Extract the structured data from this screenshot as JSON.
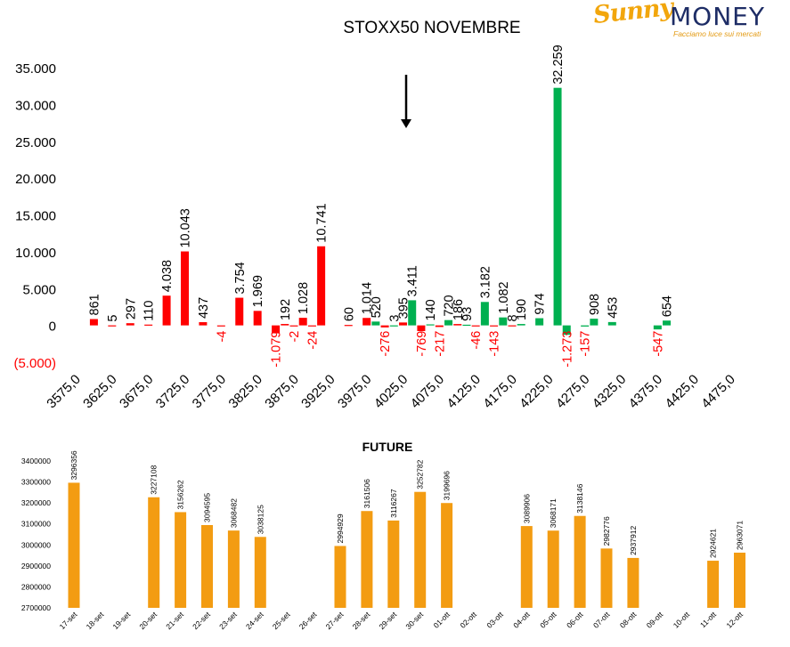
{
  "logo": {
    "brand_left": "Sunny",
    "brand_right": "MONEY",
    "tagline": "Facciamo luce sui mercati"
  },
  "colors": {
    "positive_bar": "#00b050",
    "negative_bar": "#ff0000",
    "negative_text": "#ff0000",
    "future_bar": "#f39c12"
  },
  "annotation_icon": "down-arrow-icon",
  "chart_data": [
    {
      "type": "bar",
      "title": "STOXX50 NOVEMBRE",
      "xlabel": "",
      "ylabel": "",
      "ylim": [
        -5000,
        35000
      ],
      "y_ticks": [
        "(5.000)",
        "0",
        "5.000",
        "10.000",
        "15.000",
        "20.000",
        "25.000",
        "30.000",
        "35.000"
      ],
      "x_tick_labels": [
        "3575,0",
        "3625,0",
        "3675,0",
        "3725,0",
        "3775,0",
        "3825,0",
        "3875,0",
        "3925,0",
        "3975,0",
        "4025,0",
        "4075,0",
        "4125,0",
        "4175,0",
        "4225,0",
        "4275,0",
        "4325,0",
        "4375,0",
        "4425,0",
        "4475,0"
      ],
      "grid": false,
      "points": [
        {
          "x": 3600,
          "value": 861,
          "label": "861",
          "color": "red"
        },
        {
          "x": 3625,
          "value": 5,
          "label": "5",
          "color": "red"
        },
        {
          "x": 3650,
          "value": 297,
          "label": "297",
          "color": "red"
        },
        {
          "x": 3675,
          "value": 110,
          "label": "110",
          "color": "red"
        },
        {
          "x": 3700,
          "value": 4038,
          "label": "4.038",
          "color": "red"
        },
        {
          "x": 3725,
          "value": 10043,
          "label": "10.043",
          "color": "red"
        },
        {
          "x": 3750,
          "value": 437,
          "label": "437",
          "color": "red"
        },
        {
          "x": 3775,
          "value": -4,
          "label": "-4",
          "color": "red"
        },
        {
          "x": 3800,
          "value": 3754,
          "label": "3.754",
          "color": "red"
        },
        {
          "x": 3825,
          "value": 1969,
          "label": "1.969",
          "color": "red"
        },
        {
          "x": 3850,
          "value": -1079,
          "label": "-1.079",
          "color": "red"
        },
        {
          "x": 3862.5,
          "value": 192,
          "label": "192",
          "color": "red"
        },
        {
          "x": 3875,
          "value": -2,
          "label": "-2",
          "color": "red"
        },
        {
          "x": 3887.5,
          "value": 1028,
          "label": "1.028",
          "color": "red"
        },
        {
          "x": 3900,
          "value": -24,
          "label": "-24",
          "color": "red"
        },
        {
          "x": 3912.5,
          "value": 10741,
          "label": "10.741",
          "color": "red"
        },
        {
          "x": 3950,
          "value": 60,
          "label": "60",
          "color": "red"
        },
        {
          "x": 3975,
          "value": 1014,
          "label": "1.014",
          "color": "red"
        },
        {
          "x": 3987.5,
          "value": 520,
          "label": "520",
          "color": "green"
        },
        {
          "x": 4000,
          "value": -276,
          "label": "-276",
          "color": "red"
        },
        {
          "x": 4012.5,
          "value": 3,
          "label": "3",
          "color": "green"
        },
        {
          "x": 4025,
          "value": 395,
          "label": "395",
          "color": "red"
        },
        {
          "x": 4037.5,
          "value": 3411,
          "label": "3.411",
          "color": "green"
        },
        {
          "x": 4050,
          "value": -769,
          "label": "-769",
          "color": "red"
        },
        {
          "x": 4062.5,
          "value": 140,
          "label": "140",
          "color": "green"
        },
        {
          "x": 4075,
          "value": -217,
          "label": "-217",
          "color": "red"
        },
        {
          "x": 4087.5,
          "value": 720,
          "label": "720",
          "color": "green"
        },
        {
          "x": 4100,
          "value": 186,
          "label": "186",
          "color": "red"
        },
        {
          "x": 4112.5,
          "value": 93,
          "label": "93",
          "color": "green"
        },
        {
          "x": 4125,
          "value": -46,
          "label": "-46",
          "color": "red"
        },
        {
          "x": 4137.5,
          "value": 3182,
          "label": "3.182",
          "color": "green"
        },
        {
          "x": 4150,
          "value": -143,
          "label": "-143",
          "color": "red"
        },
        {
          "x": 4162.5,
          "value": 1082,
          "label": "1.082",
          "color": "green"
        },
        {
          "x": 4175,
          "value": 8,
          "label": "8",
          "color": "red"
        },
        {
          "x": 4187.5,
          "value": 190,
          "label": "190",
          "color": "green"
        },
        {
          "x": 4212.5,
          "value": 974,
          "label": "974",
          "color": "green"
        },
        {
          "x": 4237.5,
          "value": 32259,
          "label": "32.259",
          "color": "green"
        },
        {
          "x": 4250,
          "value": -1273,
          "label": "-1.273",
          "color": "green"
        },
        {
          "x": 4275,
          "value": -157,
          "label": "-157",
          "color": "green"
        },
        {
          "x": 4287.5,
          "value": 908,
          "label": "908",
          "color": "green"
        },
        {
          "x": 4312.5,
          "value": 453,
          "label": "453",
          "color": "green"
        },
        {
          "x": 4375,
          "value": -547,
          "label": "-547",
          "color": "green"
        },
        {
          "x": 4387.5,
          "value": 654,
          "label": "654",
          "color": "green"
        }
      ]
    },
    {
      "type": "bar",
      "title": "FUTURE",
      "xlabel": "",
      "ylabel": "",
      "ylim": [
        2700000,
        3400000
      ],
      "y_ticks": [
        "2700000",
        "2800000",
        "2900000",
        "3000000",
        "3100000",
        "3200000",
        "3300000",
        "3400000"
      ],
      "grid": false,
      "categories": [
        "17-set",
        "18-set",
        "19-set",
        "20-set",
        "21-set",
        "22-set",
        "23-set",
        "24-set",
        "25-set",
        "26-set",
        "27-set",
        "28-set",
        "29-set",
        "30-set",
        "01-ott",
        "02-ott",
        "03-ott",
        "04-ott",
        "05-ott",
        "06-ott",
        "07-ott",
        "08-ott",
        "09-ott",
        "10-ott",
        "11-ott",
        "12-ott"
      ],
      "values": [
        3296356,
        null,
        null,
        3227108,
        3156262,
        3094595,
        3068482,
        3038125,
        null,
        null,
        2994929,
        3161506,
        3116267,
        3252782,
        3199696,
        null,
        null,
        3089906,
        3068171,
        3138146,
        2982776,
        2937912,
        null,
        null,
        2924621,
        2963071
      ],
      "labels": [
        "3296356",
        "",
        "",
        "3227108",
        "3156262",
        "3094595",
        "3068482",
        "3038125",
        "",
        "",
        "2994929",
        "3161506",
        "3116267",
        "3252782",
        "3199696",
        "",
        "",
        "3089906",
        "3068171",
        "3138146",
        "2982776",
        "2937912",
        "",
        "",
        "2924621",
        "2963071"
      ]
    }
  ]
}
